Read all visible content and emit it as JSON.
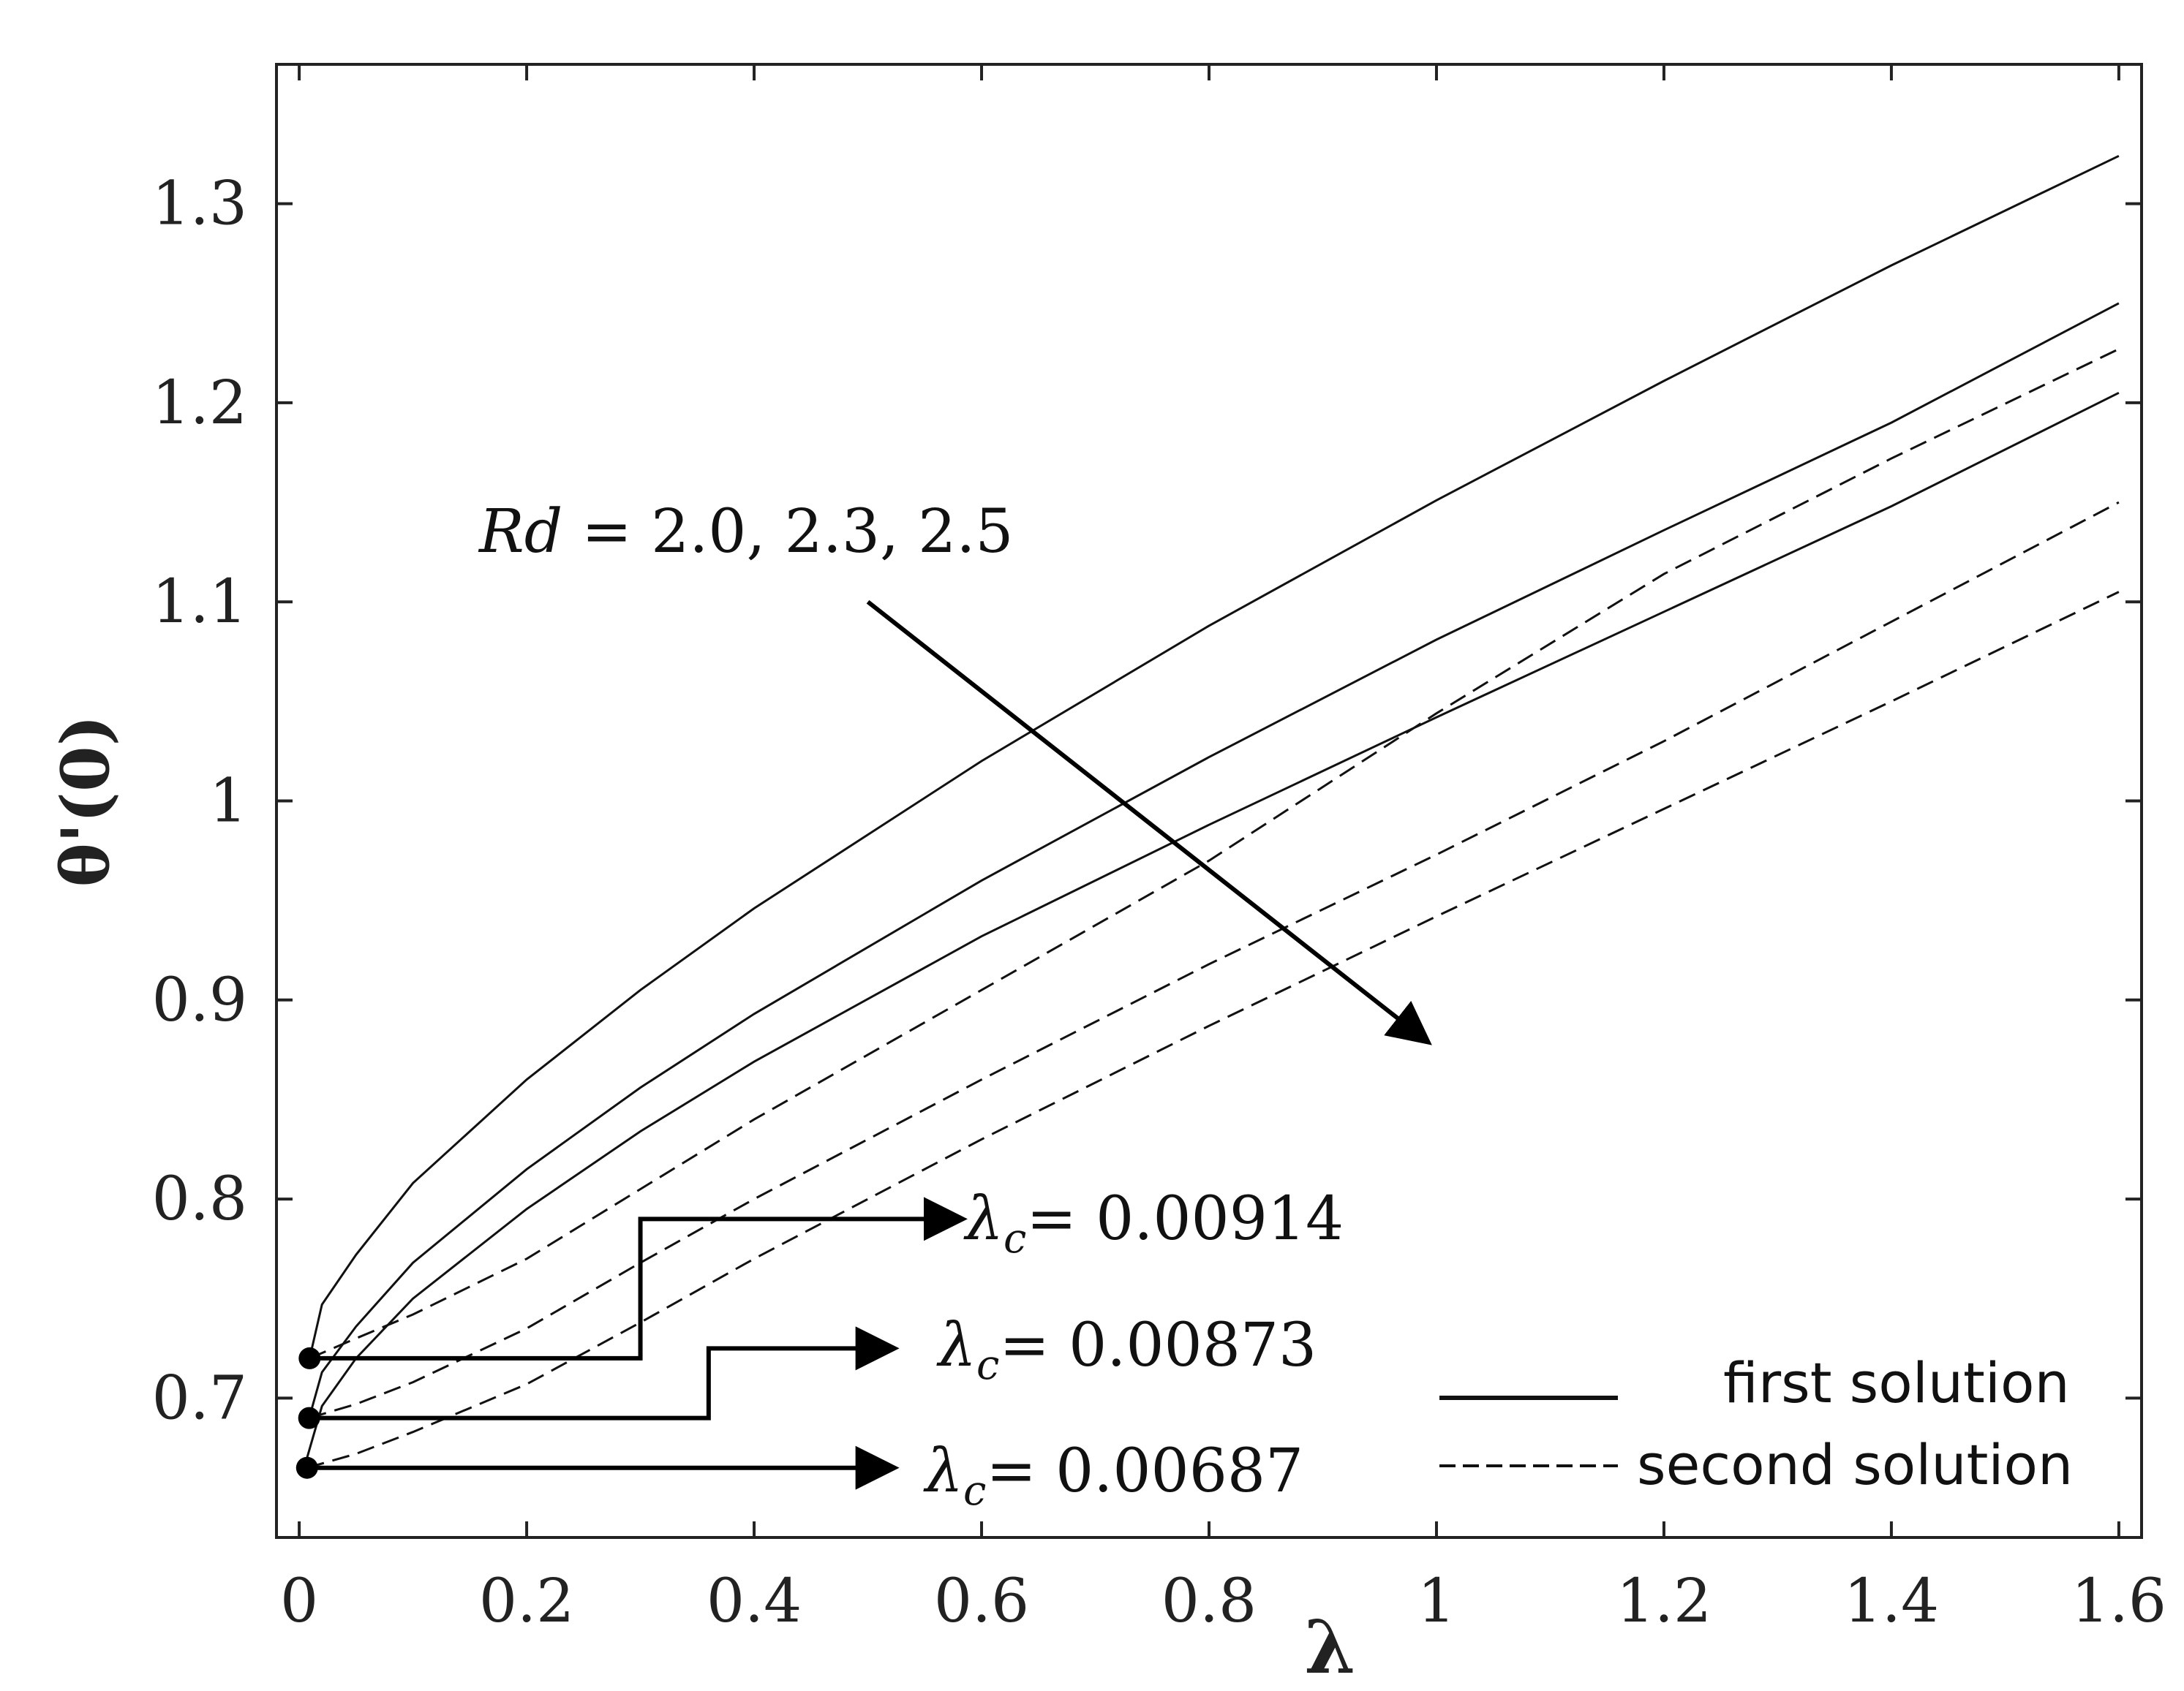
{
  "chart_data": {
    "type": "line",
    "title": "",
    "xlabel": "λ",
    "ylabel": "θ'(0)",
    "xlim": [
      -0.02,
      1.62
    ],
    "ylim": [
      0.63,
      1.37
    ],
    "xticks": [
      0,
      0.2,
      0.4,
      0.6,
      0.8,
      1,
      1.2,
      1.4,
      1.6
    ],
    "xtick_labels": [
      "0",
      "0.2",
      "0.4",
      "0.6",
      "0.8",
      "1",
      "1.2",
      "1.4",
      "1.6"
    ],
    "yticks": [
      0.7,
      0.8,
      0.9,
      1,
      1.1,
      1.2,
      1.3
    ],
    "ytick_labels": [
      "0.7",
      "0.8",
      "0.9",
      "1",
      "1.1",
      "1.2",
      "1.3"
    ],
    "grid": false,
    "legend": {
      "position": "bottom-right",
      "entries": [
        {
          "label": "first solution",
          "style": "solid"
        },
        {
          "label": "second solution",
          "style": "dashed"
        }
      ]
    },
    "series": [
      {
        "name": "first solution, Rd = 2.0",
        "style": "solid",
        "x": [
          0.00914,
          0.02,
          0.05,
          0.1,
          0.2,
          0.3,
          0.4,
          0.6,
          0.8,
          1.0,
          1.2,
          1.4,
          1.6
        ],
        "y": [
          0.72,
          0.747,
          0.772,
          0.808,
          0.86,
          0.905,
          0.946,
          1.02,
          1.088,
          1.151,
          1.211,
          1.269,
          1.324
        ]
      },
      {
        "name": "first solution, Rd = 2.3",
        "style": "solid",
        "x": [
          0.00873,
          0.02,
          0.05,
          0.1,
          0.2,
          0.3,
          0.4,
          0.6,
          0.8,
          1.0,
          1.2,
          1.4,
          1.6
        ],
        "y": [
          0.69,
          0.713,
          0.736,
          0.768,
          0.815,
          0.856,
          0.893,
          0.96,
          1.022,
          1.081,
          1.136,
          1.19,
          1.25
        ]
      },
      {
        "name": "first solution, Rd = 2.5",
        "style": "solid",
        "x": [
          0.00687,
          0.02,
          0.05,
          0.1,
          0.2,
          0.3,
          0.4,
          0.6,
          0.8,
          1.0,
          1.2,
          1.4,
          1.6
        ],
        "y": [
          0.67,
          0.696,
          0.72,
          0.75,
          0.795,
          0.834,
          0.869,
          0.932,
          0.988,
          1.042,
          1.095,
          1.148,
          1.205
        ]
      },
      {
        "name": "second solution, Rd = 2.0",
        "style": "dashed",
        "x": [
          0.00914,
          0.05,
          0.1,
          0.2,
          0.3,
          0.4,
          0.6,
          0.8,
          1.0,
          1.2,
          1.4,
          1.6
        ],
        "y": [
          0.72,
          0.73,
          0.742,
          0.77,
          0.805,
          0.84,
          0.905,
          0.97,
          1.044,
          1.114,
          1.172,
          1.227
        ]
      },
      {
        "name": "second solution, Rd = 2.3",
        "style": "dashed",
        "x": [
          0.00873,
          0.05,
          0.1,
          0.2,
          0.3,
          0.4,
          0.6,
          0.8,
          1.0,
          1.2,
          1.4,
          1.6
        ],
        "y": [
          0.69,
          0.697,
          0.708,
          0.735,
          0.768,
          0.8,
          0.86,
          0.918,
          0.973,
          1.03,
          1.09,
          1.15
        ]
      },
      {
        "name": "second solution, Rd = 2.5",
        "style": "dashed",
        "x": [
          0.00687,
          0.05,
          0.1,
          0.2,
          0.3,
          0.4,
          0.6,
          0.8,
          1.0,
          1.2,
          1.4,
          1.6
        ],
        "y": [
          0.665,
          0.672,
          0.683,
          0.707,
          0.738,
          0.77,
          0.83,
          0.887,
          0.942,
          0.996,
          1.05,
          1.105
        ]
      }
    ],
    "critical_points": [
      {
        "x": 0.00914,
        "y": 0.72,
        "label_symbol": "λ",
        "label_sub": "c",
        "label_value": "= 0.00914"
      },
      {
        "x": 0.00873,
        "y": 0.69,
        "label_symbol": "λ",
        "label_sub": "c",
        "label_value": "= 0.00873"
      },
      {
        "x": 0.00687,
        "y": 0.665,
        "label_symbol": "λ",
        "label_sub": "c",
        "label_value": "= 0.00687"
      }
    ],
    "annotations": [
      {
        "text_italic": "Rd",
        "text": " = 2.0, 2.3, 2.5",
        "arrow_from": [
          0.5,
          1.1
        ],
        "arrow_to": [
          0.99,
          0.88
        ]
      }
    ]
  }
}
